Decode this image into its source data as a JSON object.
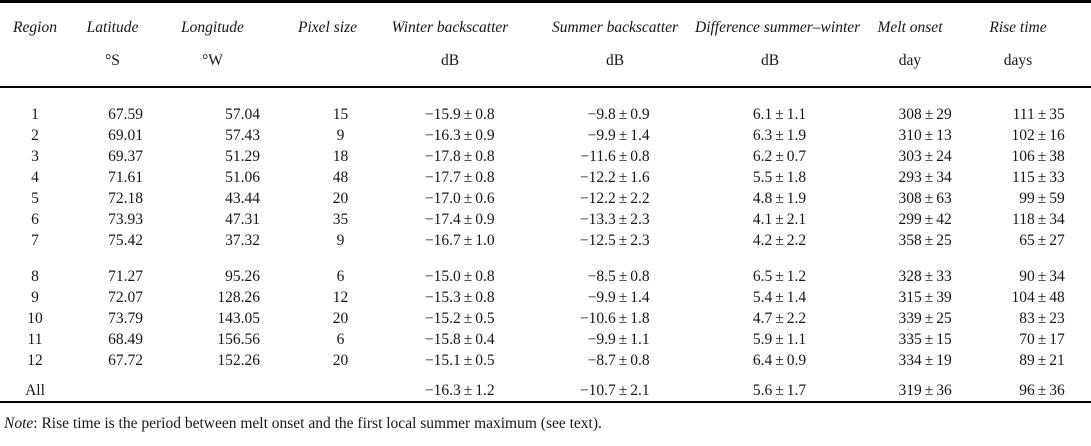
{
  "table": {
    "columns": [
      {
        "key": "region",
        "label": "Region",
        "unit": ""
      },
      {
        "key": "latitude",
        "label": "Latitude",
        "unit": "°S"
      },
      {
        "key": "longitude",
        "label": "Longitude",
        "unit": "°W"
      },
      {
        "key": "pixel_size",
        "label": "Pixel size",
        "unit": ""
      },
      {
        "key": "winter",
        "label": "Winter backscatter",
        "unit": "dB"
      },
      {
        "key": "summer",
        "label": "Summer backscatter",
        "unit": "dB"
      },
      {
        "key": "difference",
        "label": "Difference summer–winter",
        "unit": "dB"
      },
      {
        "key": "melt_onset",
        "label": "Melt onset",
        "unit": "day"
      },
      {
        "key": "rise_time",
        "label": "Rise time",
        "unit": "days"
      }
    ],
    "rows": [
      {
        "region": "1",
        "latitude": "67.59",
        "longitude": "57.04",
        "pixel_size": "15",
        "winter": "−15.9 ± 0.8",
        "summer": "−9.8 ± 0.9",
        "difference": "6.1 ± 1.1",
        "melt_onset": "308 ± 29",
        "rise_time": "111 ± 35"
      },
      {
        "region": "2",
        "latitude": "69.01",
        "longitude": "57.43",
        "pixel_size": "9",
        "winter": "−16.3 ± 0.9",
        "summer": "−9.9 ± 1.4",
        "difference": "6.3 ± 1.9",
        "melt_onset": "310 ± 13",
        "rise_time": "102 ± 16"
      },
      {
        "region": "3",
        "latitude": "69.37",
        "longitude": "51.29",
        "pixel_size": "18",
        "winter": "−17.8 ± 0.8",
        "summer": "−11.6 ± 0.8",
        "difference": "6.2 ± 0.7",
        "melt_onset": "303 ± 24",
        "rise_time": "106 ± 38"
      },
      {
        "region": "4",
        "latitude": "71.61",
        "longitude": "51.06",
        "pixel_size": "48",
        "winter": "−17.7 ± 0.8",
        "summer": "−12.2 ± 1.6",
        "difference": "5.5 ± 1.8",
        "melt_onset": "293 ± 34",
        "rise_time": "115 ± 33"
      },
      {
        "region": "5",
        "latitude": "72.18",
        "longitude": "43.44",
        "pixel_size": "20",
        "winter": "−17.0 ± 0.6",
        "summer": "−12.2 ± 2.2",
        "difference": "4.8 ± 1.9",
        "melt_onset": "308 ± 63",
        "rise_time": "99 ± 59"
      },
      {
        "region": "6",
        "latitude": "73.93",
        "longitude": "47.31",
        "pixel_size": "35",
        "winter": "−17.4 ± 0.9",
        "summer": "−13.3 ± 2.3",
        "difference": "4.1 ± 2.1",
        "melt_onset": "299 ± 42",
        "rise_time": "118 ± 34"
      },
      {
        "region": "7",
        "latitude": "75.42",
        "longitude": "37.32",
        "pixel_size": "9",
        "winter": "−16.7 ± 1.0",
        "summer": "−12.5 ± 2.3",
        "difference": "4.2 ± 2.2",
        "melt_onset": "358 ± 25",
        "rise_time": "65 ± 27"
      },
      {
        "region": "8",
        "latitude": "71.27",
        "longitude": "95.26",
        "pixel_size": "6",
        "winter": "−15.0 ± 0.8",
        "summer": "−8.5 ± 0.8",
        "difference": "6.5 ± 1.2",
        "melt_onset": "328 ± 33",
        "rise_time": "90 ± 34",
        "group_start": true
      },
      {
        "region": "9",
        "latitude": "72.07",
        "longitude": "128.26",
        "pixel_size": "12",
        "winter": "−15.3 ± 0.8",
        "summer": "−9.9 ± 1.4",
        "difference": "5.4 ± 1.4",
        "melt_onset": "315 ± 39",
        "rise_time": "104 ± 48"
      },
      {
        "region": "10",
        "latitude": "73.79",
        "longitude": "143.05",
        "pixel_size": "20",
        "winter": "−15.2 ± 0.5",
        "summer": "−10.6 ± 1.8",
        "difference": "4.7 ± 2.2",
        "melt_onset": "339 ± 25",
        "rise_time": "83 ± 23"
      },
      {
        "region": "11",
        "latitude": "68.49",
        "longitude": "156.56",
        "pixel_size": "6",
        "winter": "−15.8 ± 0.4",
        "summer": "−9.9 ± 1.1",
        "difference": "5.9 ± 1.1",
        "melt_onset": "335 ± 15",
        "rise_time": "70 ± 17"
      },
      {
        "region": "12",
        "latitude": "67.72",
        "longitude": "152.26",
        "pixel_size": "20",
        "winter": "−15.1 ± 0.5",
        "summer": "−8.7 ± 0.8",
        "difference": "6.4 ± 0.9",
        "melt_onset": "334 ± 19",
        "rise_time": "89 ± 21"
      },
      {
        "region": "All",
        "latitude": "",
        "longitude": "",
        "pixel_size": "",
        "winter": "−16.3 ± 1.2",
        "summer": "−10.7 ± 2.1",
        "difference": "5.6 ± 1.7",
        "melt_onset": "319 ± 36",
        "rise_time": "96 ± 36",
        "is_total": true
      }
    ],
    "footer_note": {
      "label": "Note",
      "text": ": Rise time is the period between melt onset and the first local summer maximum (see text)."
    }
  }
}
